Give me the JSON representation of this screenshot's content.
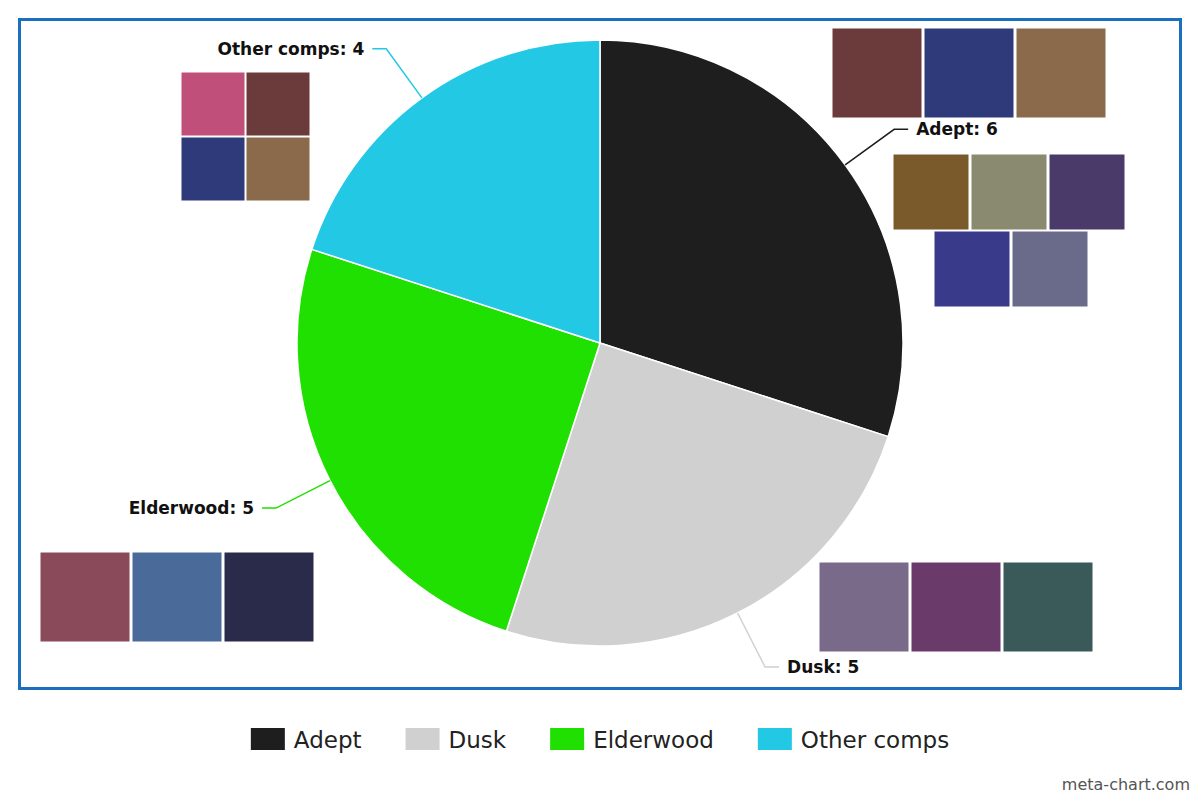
{
  "chart_data": {
    "type": "pie",
    "categories": [
      "Adept",
      "Dusk",
      "Elderwood",
      "Other comps"
    ],
    "values": [
      6,
      5,
      5,
      4
    ],
    "colors": [
      "#1e1e1e",
      "#d0d0d0",
      "#1fe000",
      "#22c8e4"
    ],
    "data_labels": true,
    "value_labels": [
      "Adept: 6",
      "Dusk: 5",
      "Elderwood: 5",
      "Other comps: 4"
    ],
    "legend": "bottom",
    "annotations": [
      "meta-chart.com"
    ]
  }
}
